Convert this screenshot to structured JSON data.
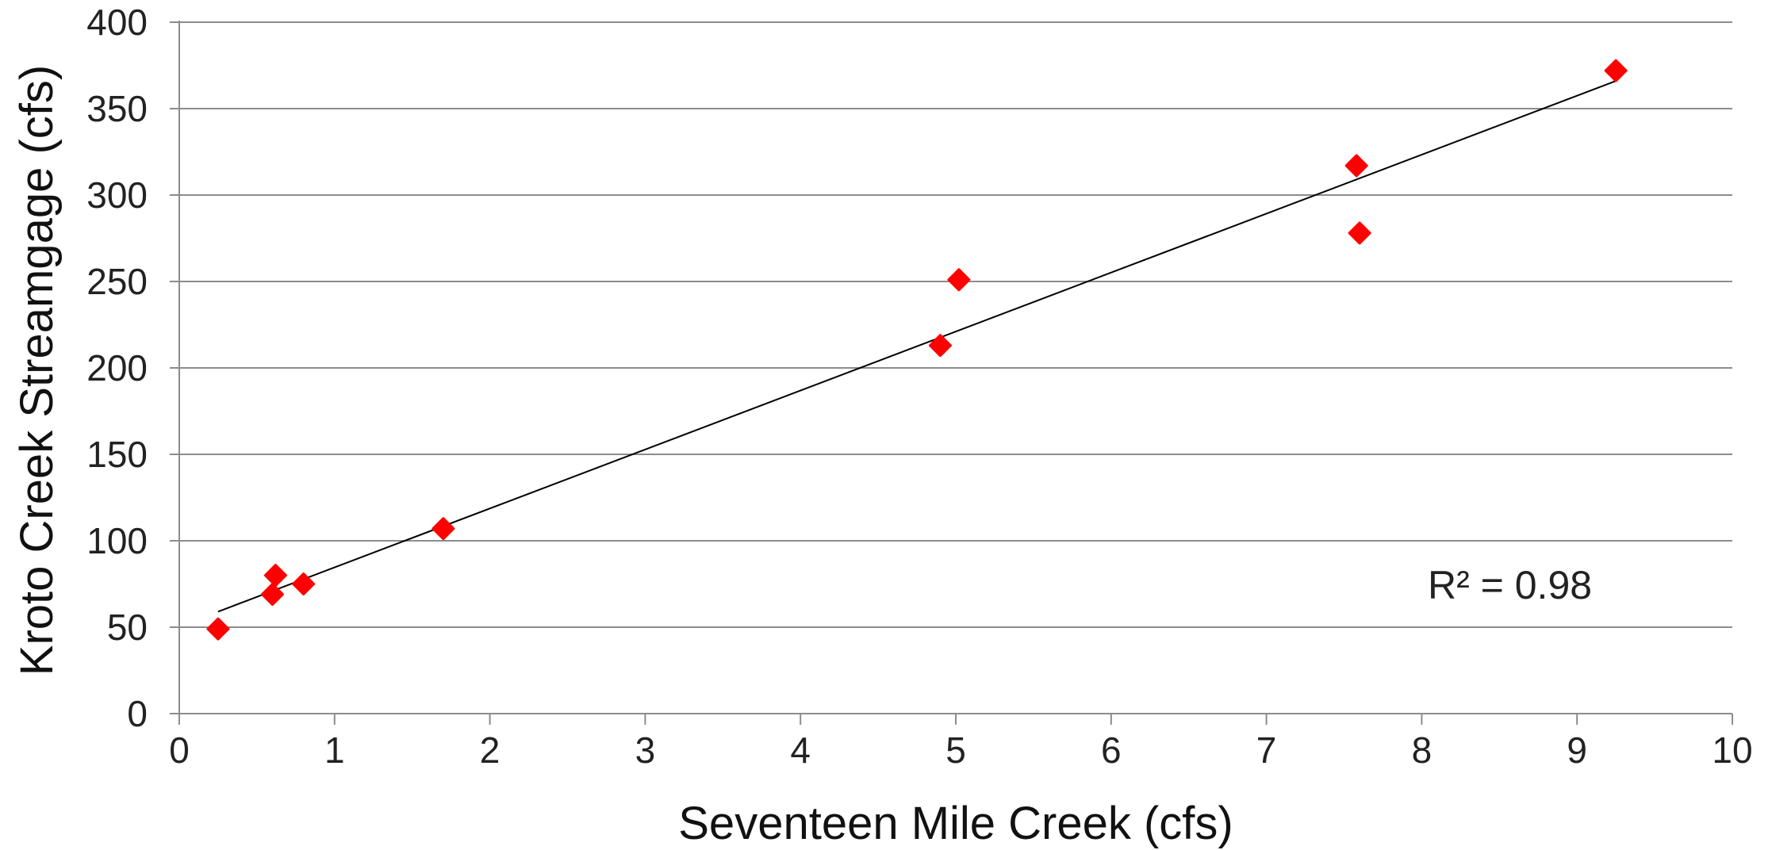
{
  "chart_data": {
    "type": "scatter",
    "xlabel": "Seventeen Mile Creek (cfs)",
    "ylabel": "Kroto Creek Streamgage (cfs)",
    "xlim": [
      0,
      10
    ],
    "ylim": [
      0,
      400
    ],
    "x_ticks": [
      0,
      1,
      2,
      3,
      4,
      5,
      6,
      7,
      8,
      9,
      10
    ],
    "y_ticks": [
      0,
      50,
      100,
      150,
      200,
      250,
      300,
      350,
      400
    ],
    "grid": "horizontal",
    "marker": "diamond",
    "marker_color": "#ff0000",
    "points": [
      {
        "x": 0.25,
        "y": 49
      },
      {
        "x": 0.6,
        "y": 69
      },
      {
        "x": 0.62,
        "y": 80
      },
      {
        "x": 0.8,
        "y": 75
      },
      {
        "x": 1.7,
        "y": 107
      },
      {
        "x": 4.9,
        "y": 213
      },
      {
        "x": 5.02,
        "y": 251
      },
      {
        "x": 7.58,
        "y": 317
      },
      {
        "x": 7.6,
        "y": 278
      },
      {
        "x": 9.25,
        "y": 372
      }
    ],
    "trendline": {
      "type": "linear",
      "x_start": 0.25,
      "y_start": 59,
      "x_end": 9.25,
      "y_end": 366,
      "r_squared_label": "R² = 0.98"
    }
  }
}
